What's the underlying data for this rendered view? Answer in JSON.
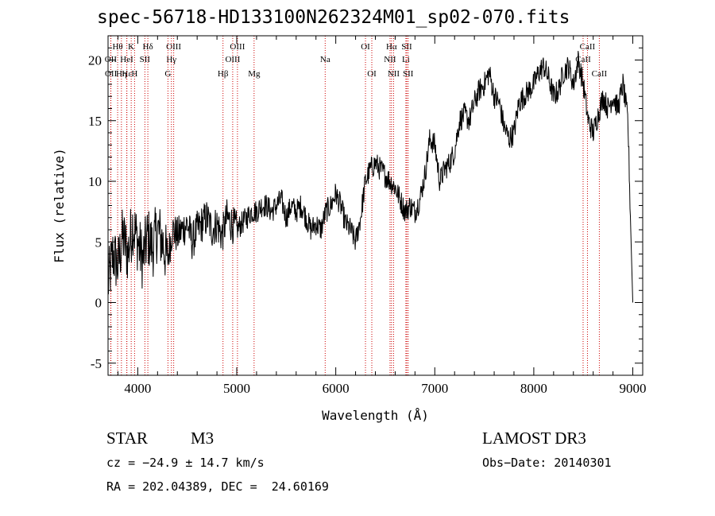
{
  "chart_data": {
    "type": "line",
    "title": "spec-56718-HD133100N262324M01_sp02-070.fits",
    "xlabel": "Wavelength (Å)",
    "ylabel": "Flux (relative)",
    "xlim": [
      3700,
      9100
    ],
    "ylim": [
      -6,
      22
    ],
    "xticks": [
      4000,
      5000,
      6000,
      7000,
      8000,
      9000
    ],
    "yticks": [
      -5,
      0,
      5,
      10,
      15,
      20
    ],
    "series": [
      {
        "name": "flux",
        "x": [
          3700,
          3750,
          3800,
          3850,
          3900,
          3950,
          4000,
          4050,
          4100,
          4150,
          4200,
          4250,
          4300,
          4350,
          4400,
          4450,
          4500,
          4550,
          4600,
          4650,
          4700,
          4750,
          4800,
          4850,
          4900,
          4950,
          5000,
          5050,
          5100,
          5150,
          5200,
          5250,
          5300,
          5350,
          5400,
          5450,
          5500,
          5550,
          5600,
          5650,
          5700,
          5750,
          5800,
          5850,
          5900,
          5950,
          6000,
          6050,
          6100,
          6150,
          6200,
          6250,
          6300,
          6350,
          6400,
          6450,
          6500,
          6550,
          6600,
          6650,
          6700,
          6750,
          6800,
          6850,
          6900,
          6950,
          7000,
          7050,
          7100,
          7150,
          7200,
          7250,
          7300,
          7350,
          7400,
          7450,
          7500,
          7550,
          7600,
          7650,
          7700,
          7750,
          7800,
          7850,
          7900,
          7950,
          8000,
          8050,
          8100,
          8150,
          8200,
          8250,
          8300,
          8350,
          8400,
          8450,
          8500,
          8550,
          8600,
          8650,
          8700,
          8750,
          8800,
          8850,
          8900,
          8950,
          9000
        ],
        "y": [
          1.5,
          4.0,
          3.0,
          5.5,
          4.0,
          6.5,
          5.0,
          3.5,
          5.5,
          4.5,
          6.0,
          5.0,
          3.5,
          6.0,
          5.5,
          6.0,
          6.5,
          5.0,
          6.0,
          6.5,
          7.0,
          6.0,
          6.5,
          5.5,
          7.0,
          6.5,
          6.0,
          6.5,
          7.0,
          7.5,
          7.5,
          8.0,
          8.0,
          7.5,
          8.0,
          8.5,
          7.0,
          8.0,
          7.5,
          8.0,
          7.0,
          6.0,
          6.5,
          6.0,
          7.5,
          8.0,
          9.0,
          8.0,
          6.5,
          6.0,
          5.0,
          7.0,
          10.0,
          11.0,
          11.5,
          11.0,
          10.5,
          10.0,
          9.5,
          8.5,
          7.5,
          8.0,
          7.5,
          8.5,
          10.5,
          13.5,
          13.0,
          10.0,
          11.0,
          11.5,
          12.5,
          15.0,
          15.5,
          15.0,
          16.5,
          17.5,
          18.0,
          19.0,
          17.0,
          16.5,
          14.5,
          13.5,
          14.0,
          16.5,
          17.0,
          17.5,
          18.0,
          19.0,
          19.5,
          18.5,
          17.0,
          17.5,
          19.0,
          19.5,
          18.0,
          20.0,
          18.0,
          15.0,
          14.0,
          15.5,
          17.0,
          16.0,
          17.0,
          16.0,
          18.0,
          15.0,
          0.0
        ]
      }
    ],
    "line_markers": [
      {
        "label": "Hθ",
        "wavelength": 3797,
        "row": 1
      },
      {
        "label": "OII",
        "wavelength": 3727,
        "row": 2
      },
      {
        "label": "OII",
        "wavelength": 3729,
        "row": 3
      },
      {
        "label": "Hε",
        "wavelength": 3890,
        "row": 3
      },
      {
        "label": "Hη",
        "wavelength": 3835,
        "row": 3
      },
      {
        "label": "HeI",
        "wavelength": 3889,
        "row": 2
      },
      {
        "label": "K",
        "wavelength": 3934,
        "row": 1
      },
      {
        "label": "H",
        "wavelength": 3968,
        "row": 3
      },
      {
        "label": "SII",
        "wavelength": 4072,
        "row": 2
      },
      {
        "label": "Hδ",
        "wavelength": 4102,
        "row": 1
      },
      {
        "label": "OIII",
        "wavelength": 4363,
        "row": 1
      },
      {
        "label": "Hγ",
        "wavelength": 4340,
        "row": 2
      },
      {
        "label": "G",
        "wavelength": 4305,
        "row": 3
      },
      {
        "label": "Hβ",
        "wavelength": 4861,
        "row": 3
      },
      {
        "label": "OIII",
        "wavelength": 5007,
        "row": 1
      },
      {
        "label": "OIII",
        "wavelength": 4959,
        "row": 2
      },
      {
        "label": "Mg",
        "wavelength": 5175,
        "row": 3
      },
      {
        "label": "Na",
        "wavelength": 5893,
        "row": 2
      },
      {
        "label": "OI",
        "wavelength": 6300,
        "row": 1
      },
      {
        "label": "OI",
        "wavelength": 6364,
        "row": 3
      },
      {
        "label": "Hα",
        "wavelength": 6563,
        "row": 1
      },
      {
        "label": "NII",
        "wavelength": 6548,
        "row": 2
      },
      {
        "label": "NII",
        "wavelength": 6584,
        "row": 3
      },
      {
        "label": "SII",
        "wavelength": 6717,
        "row": 1
      },
      {
        "label": "Li",
        "wavelength": 6708,
        "row": 2
      },
      {
        "label": "SII",
        "wavelength": 6731,
        "row": 3
      },
      {
        "label": "CaII",
        "wavelength": 8542,
        "row": 1
      },
      {
        "label": "CaII",
        "wavelength": 8498,
        "row": 2
      },
      {
        "label": "CaII",
        "wavelength": 8662,
        "row": 3
      }
    ]
  },
  "info": {
    "class": "STAR",
    "subclass": "M3",
    "survey": "LAMOST DR3",
    "cz": "cz = −24.9 ± 14.7 km/s",
    "obs_date": "Obs−Date: 20140301",
    "coords": "RA = 202.04389, DEC =  24.60169"
  }
}
